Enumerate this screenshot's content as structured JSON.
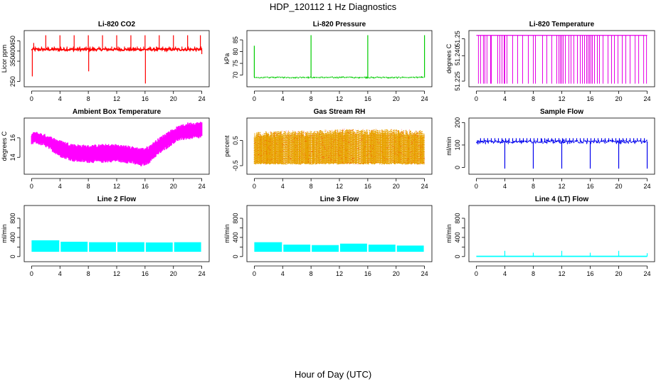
{
  "title": "HDP_120112  1 Hz Diagnostics",
  "xlabel": "Hour of Day (UTC)",
  "chart_data": [
    {
      "type": "line",
      "title": "Li-820 CO2",
      "ylabel": "Licor ppm",
      "color": "#ff0000",
      "xlim": [
        0,
        24
      ],
      "ylim": [
        235,
        490
      ],
      "xticks": [
        "0",
        "4",
        "8",
        "12",
        "16",
        "20",
        "24"
      ],
      "yticks": [
        250,
        350,
        400,
        450
      ],
      "ytick_labels": [
        "250",
        "350",
        "400",
        "450"
      ],
      "baseline": 408,
      "noise": 6,
      "marker": "none",
      "spikes": [
        {
          "x": 0.1,
          "y": 275
        },
        {
          "x": 0.3,
          "y": 440
        },
        {
          "x": 2.0,
          "y": 478
        },
        {
          "x": 4.0,
          "y": 478
        },
        {
          "x": 6.0,
          "y": 478
        },
        {
          "x": 8.0,
          "y": 478
        },
        {
          "x": 8.05,
          "y": 300
        },
        {
          "x": 10.0,
          "y": 478
        },
        {
          "x": 12.0,
          "y": 478
        },
        {
          "x": 14.0,
          "y": 478
        },
        {
          "x": 16.0,
          "y": 478
        },
        {
          "x": 16.05,
          "y": 240
        },
        {
          "x": 18.0,
          "y": 478
        },
        {
          "x": 20.0,
          "y": 478
        },
        {
          "x": 22.0,
          "y": 478
        },
        {
          "x": 23.8,
          "y": 478
        },
        {
          "x": 24.0,
          "y": 385
        }
      ]
    },
    {
      "type": "line",
      "title": "Li-820 Pressure",
      "ylabel": "kPa",
      "color": "#00cc00",
      "xlim": [
        0,
        24
      ],
      "ylim": [
        66,
        88
      ],
      "xticks": [
        "0",
        "4",
        "8",
        "12",
        "16",
        "20",
        "24"
      ],
      "yticks": [
        70,
        75,
        80,
        85
      ],
      "ytick_labels": [
        "70",
        "75",
        "80",
        "85"
      ],
      "baseline": 69.0,
      "noise": 0.2,
      "marker": "dot",
      "spikes": [
        {
          "x": 0.0,
          "y": 82.5
        },
        {
          "x": 8.0,
          "y": 87
        },
        {
          "x": 16.0,
          "y": 87
        },
        {
          "x": 24.0,
          "y": 87
        }
      ]
    },
    {
      "type": "line",
      "title": "Li-820 Temperature",
      "ylabel": "degrees C",
      "color": "#e600e6",
      "xlim": [
        0,
        24
      ],
      "ylim": [
        51.223,
        51.2535
      ],
      "xticks": [
        "0",
        "4",
        "8",
        "12",
        "16",
        "20",
        "24"
      ],
      "yticks": [
        51.225,
        51.24,
        51.25
      ],
      "ytick_labels": [
        "51.225",
        "51.240",
        "51.25"
      ],
      "baseline": 51.252,
      "low": 51.2235,
      "marker": "none",
      "dips": [
        0.3,
        0.6,
        1.0,
        1.2,
        1.5,
        2.0,
        2.1,
        3.0,
        3.3,
        3.6,
        3.9,
        4.0,
        4.3,
        5.1,
        5.8,
        6.5,
        7.3,
        8.0,
        8.3,
        9.3,
        9.9,
        10.6,
        11.3,
        11.6,
        11.8,
        12.0,
        12.2,
        12.5,
        13.0,
        13.3,
        13.7,
        14.2,
        14.6,
        14.9,
        15.2,
        15.5,
        15.7,
        15.9,
        16.1,
        16.3,
        16.6,
        17.0,
        17.3,
        17.8,
        18.5,
        19.0,
        19.4,
        19.9,
        20.5,
        21.0,
        21.6,
        22.3,
        22.8,
        23.5,
        23.9
      ]
    },
    {
      "type": "line",
      "title": "Ambient Box Temperature",
      "ylabel": "degrees C",
      "color": "#ff00ff",
      "xlim": [
        0,
        24
      ],
      "ylim": [
        12.5,
        17.8
      ],
      "xticks": [
        "0",
        "4",
        "8",
        "12",
        "16",
        "20",
        "24"
      ],
      "yticks": [
        14,
        16
      ],
      "ytick_labels": [
        "14",
        "16"
      ],
      "band_upper": [
        [
          0,
          16.3
        ],
        [
          0.5,
          16.5
        ],
        [
          2,
          16.2
        ],
        [
          4,
          15.6
        ],
        [
          6,
          15.2
        ],
        [
          8,
          15.1
        ],
        [
          10,
          15.2
        ],
        [
          12,
          15.2
        ],
        [
          14,
          15.0
        ],
        [
          15.5,
          14.8
        ],
        [
          16.5,
          15.0
        ],
        [
          17.5,
          15.6
        ],
        [
          19,
          16.4
        ],
        [
          20.5,
          17.0
        ],
        [
          22,
          17.4
        ],
        [
          24,
          17.5
        ]
      ],
      "band_lower": [
        [
          0,
          15.4
        ],
        [
          0.5,
          15.6
        ],
        [
          2,
          15.2
        ],
        [
          4,
          14.2
        ],
        [
          6,
          13.7
        ],
        [
          8,
          13.6
        ],
        [
          10,
          13.6
        ],
        [
          12,
          13.7
        ],
        [
          14,
          13.5
        ],
        [
          15.5,
          13.2
        ],
        [
          16.5,
          13.5
        ],
        [
          17.5,
          14.2
        ],
        [
          19,
          15.0
        ],
        [
          20.5,
          15.8
        ],
        [
          22,
          16.0
        ],
        [
          24,
          16.1
        ]
      ]
    },
    {
      "type": "scatter",
      "title": "Gas Stream RH",
      "ylabel": "percent",
      "color": "#e8a200",
      "overlay_color": "#ff0000",
      "xlim": [
        0,
        24
      ],
      "ylim": [
        -0.75,
        1.3
      ],
      "xticks": [
        "0",
        "4",
        "8",
        "12",
        "16",
        "20",
        "24"
      ],
      "yticks": [
        -0.5,
        0.5
      ],
      "ytick_labels": [
        "-0.5",
        "0.5"
      ],
      "band_upper": [
        [
          0,
          0.85
        ],
        [
          4,
          0.9
        ],
        [
          8,
          0.9
        ],
        [
          12,
          0.95
        ],
        [
          16,
          0.95
        ],
        [
          20,
          0.95
        ],
        [
          24,
          0.9
        ]
      ],
      "band_lower": [
        [
          0,
          -0.45
        ],
        [
          24,
          -0.45
        ]
      ]
    },
    {
      "type": "line",
      "title": "Sample Flow",
      "ylabel": "ml/min",
      "color": "#0000ee",
      "xlim": [
        0,
        24
      ],
      "ylim": [
        -20,
        210
      ],
      "xticks": [
        "0",
        "4",
        "8",
        "12",
        "16",
        "20",
        "24"
      ],
      "yticks": [
        0,
        100,
        200
      ],
      "ytick_labels": [
        "0",
        "100",
        "200"
      ],
      "baseline": 115,
      "noise": 6,
      "marker": "dot",
      "spikes": [
        {
          "x": 4.0,
          "y": -5
        },
        {
          "x": 8.0,
          "y": -5
        },
        {
          "x": 12.0,
          "y": -5
        },
        {
          "x": 16.0,
          "y": -5
        },
        {
          "x": 20.0,
          "y": -5
        },
        {
          "x": 24.0,
          "y": -5
        }
      ]
    },
    {
      "type": "area",
      "title": "Line 2 Flow",
      "ylabel": "ml/min",
      "color": "#00ffff",
      "xlim": [
        0,
        24
      ],
      "ylim": [
        -60,
        1020
      ],
      "xticks": [
        "0",
        "4",
        "8",
        "12",
        "16",
        "20",
        "24"
      ],
      "yticks": [
        0,
        200,
        400,
        600,
        800
      ],
      "ytick_labels": [
        "0",
        "400",
        "800"
      ],
      "segments": [
        {
          "x0": 0,
          "x1": 4,
          "lo": 100,
          "hi": 340
        },
        {
          "x0": 4,
          "x1": 8,
          "lo": 100,
          "hi": 310
        },
        {
          "x0": 8,
          "x1": 12,
          "lo": 100,
          "hi": 300
        },
        {
          "x0": 12,
          "x1": 16,
          "lo": 100,
          "hi": 300
        },
        {
          "x0": 16,
          "x1": 20,
          "lo": 100,
          "hi": 295
        },
        {
          "x0": 20,
          "x1": 24,
          "lo": 100,
          "hi": 300
        }
      ]
    },
    {
      "type": "area",
      "title": "Line 3 Flow",
      "ylabel": "ml/min",
      "color": "#00ffff",
      "xlim": [
        0,
        24
      ],
      "ylim": [
        -60,
        1020
      ],
      "xticks": [
        "0",
        "4",
        "8",
        "12",
        "16",
        "20",
        "24"
      ],
      "yticks": [
        0,
        200,
        400,
        600,
        800
      ],
      "ytick_labels": [
        "0",
        "400",
        "800"
      ],
      "segments": [
        {
          "x0": 0,
          "x1": 4,
          "lo": 100,
          "hi": 300
        },
        {
          "x0": 4,
          "x1": 8,
          "lo": 100,
          "hi": 250
        },
        {
          "x0": 8,
          "x1": 12,
          "lo": 100,
          "hi": 240
        },
        {
          "x0": 12,
          "x1": 16,
          "lo": 100,
          "hi": 270
        },
        {
          "x0": 16,
          "x1": 20,
          "lo": 100,
          "hi": 250
        },
        {
          "x0": 20,
          "x1": 24,
          "lo": 100,
          "hi": 230
        }
      ]
    },
    {
      "type": "line",
      "title": "Line 4 (LT) Flow",
      "ylabel": "ml/min",
      "color": "#00ffff",
      "xlim": [
        0,
        24
      ],
      "ylim": [
        -60,
        1020
      ],
      "xticks": [
        "0",
        "4",
        "8",
        "12",
        "16",
        "20",
        "24"
      ],
      "yticks": [
        0,
        200,
        400,
        600,
        800
      ],
      "ytick_labels": [
        "0",
        "400",
        "800"
      ],
      "baseline": 5,
      "noise": 0,
      "marker": "none",
      "spikes": [
        {
          "x": 4.0,
          "y": 120
        },
        {
          "x": 8.0,
          "y": 80
        },
        {
          "x": 12.0,
          "y": 120
        },
        {
          "x": 16.0,
          "y": 80
        },
        {
          "x": 20.0,
          "y": 120
        },
        {
          "x": 24.0,
          "y": 70
        }
      ]
    }
  ]
}
